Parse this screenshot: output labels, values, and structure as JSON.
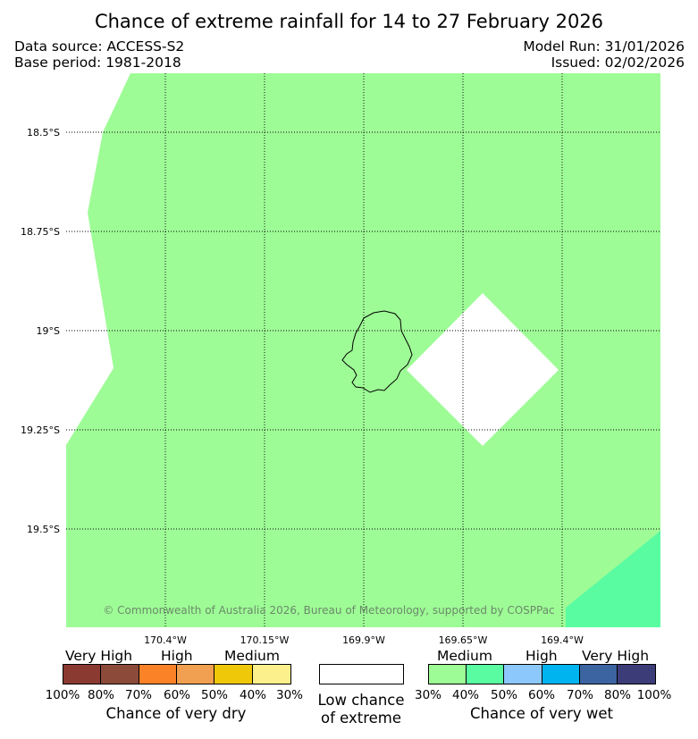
{
  "header": {
    "title": "Chance of extreme rainfall for 14 to 27 February 2026",
    "data_source": "Data source: ACCESS-S2",
    "base_period": "Base period: 1981-2018",
    "model_run": "Model Run: 31/01/2026",
    "issued": "Issued: 02/02/2026"
  },
  "map": {
    "lat_labels": [
      "18.5°S",
      "18.75°S",
      "19°S",
      "19.25°S",
      "19.5°S"
    ],
    "lon_labels": [
      "170.4°W",
      "170.15°W",
      "169.9°W",
      "169.65°W",
      "169.4°W"
    ],
    "copyright": "© Commonwealth of Australia 2026, Bureau of Meteorology, supported by COSPPac",
    "colors": {
      "medium_wet": "#9efc96",
      "high_40_50_wet": "#5afca2",
      "low_chance": "#ffffff",
      "coastline": "#000000"
    },
    "island_icon": "niue-island-outline"
  },
  "legend": {
    "dry": {
      "headings": [
        "Very High",
        "High",
        "Medium"
      ],
      "colors": [
        "#8b3a32",
        "#8b4a3a",
        "#fc8228",
        "#f0a050",
        "#f0c80a",
        "#fcf08c"
      ],
      "ticks": [
        "100%",
        "80%",
        "70%",
        "60%",
        "50%",
        "40%",
        "30%"
      ],
      "caption": "Chance of very dry"
    },
    "neutral": {
      "color": "#ffffff",
      "caption_line1": "Low chance",
      "caption_line2": "of extreme"
    },
    "wet": {
      "headings": [
        "Medium",
        "High",
        "Very High"
      ],
      "colors": [
        "#9efc96",
        "#5afca2",
        "#8cc8fc",
        "#00b4f0",
        "#3c64a0",
        "#3c3c78"
      ],
      "ticks": [
        "30%",
        "40%",
        "50%",
        "60%",
        "70%",
        "80%",
        "100%"
      ],
      "caption": "Chance of very wet"
    }
  }
}
